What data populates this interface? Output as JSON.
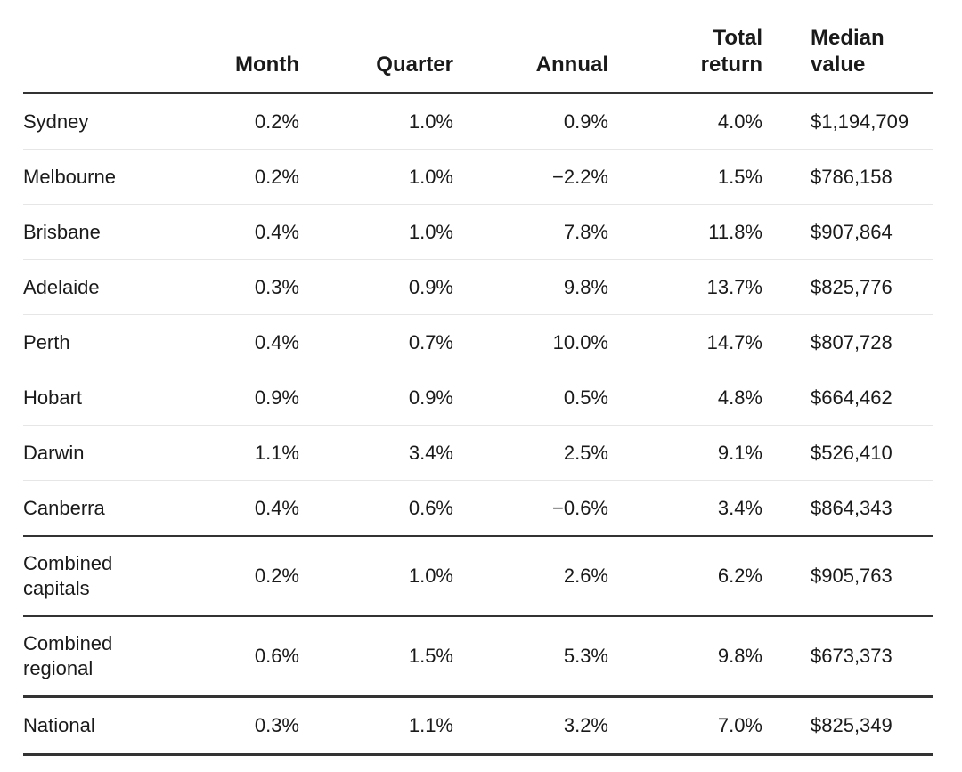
{
  "table": {
    "headers": {
      "region": "",
      "month": "Month",
      "quarter": "Quarter",
      "annual": "Annual",
      "total_return": "Total return",
      "median_value": "Median value"
    },
    "rows": [
      {
        "region": "Sydney",
        "month": "0.2%",
        "quarter": "1.0%",
        "annual": "0.9%",
        "total_return": "4.0%",
        "median_value": "$1,194,709"
      },
      {
        "region": "Melbourne",
        "month": "0.2%",
        "quarter": "1.0%",
        "annual": "−2.2%",
        "total_return": "1.5%",
        "median_value": "$786,158"
      },
      {
        "region": "Brisbane",
        "month": "0.4%",
        "quarter": "1.0%",
        "annual": "7.8%",
        "total_return": "11.8%",
        "median_value": "$907,864"
      },
      {
        "region": "Adelaide",
        "month": "0.3%",
        "quarter": "0.9%",
        "annual": "9.8%",
        "total_return": "13.7%",
        "median_value": "$825,776"
      },
      {
        "region": "Perth",
        "month": "0.4%",
        "quarter": "0.7%",
        "annual": "10.0%",
        "total_return": "14.7%",
        "median_value": "$807,728"
      },
      {
        "region": "Hobart",
        "month": "0.9%",
        "quarter": "0.9%",
        "annual": "0.5%",
        "total_return": "4.8%",
        "median_value": "$664,462"
      },
      {
        "region": "Darwin",
        "month": "1.1%",
        "quarter": "3.4%",
        "annual": "2.5%",
        "total_return": "9.1%",
        "median_value": "$526,410"
      },
      {
        "region": "Canberra",
        "month": "0.4%",
        "quarter": "0.6%",
        "annual": "−0.6%",
        "total_return": "3.4%",
        "median_value": "$864,343"
      },
      {
        "region": "Combined capitals",
        "month": "0.2%",
        "quarter": "1.0%",
        "annual": "2.6%",
        "total_return": "6.2%",
        "median_value": "$905,763"
      },
      {
        "region": "Combined regional",
        "month": "0.6%",
        "quarter": "1.5%",
        "annual": "5.3%",
        "total_return": "9.8%",
        "median_value": "$673,373"
      },
      {
        "region": "National",
        "month": "0.3%",
        "quarter": "1.1%",
        "annual": "3.2%",
        "total_return": "7.0%",
        "median_value": "$825,349"
      }
    ]
  }
}
